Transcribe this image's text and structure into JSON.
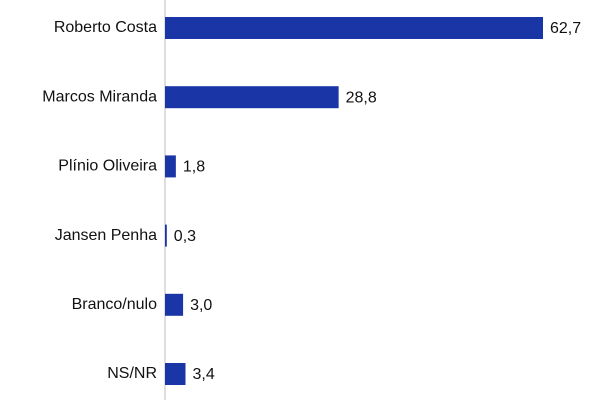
{
  "chart_data": {
    "type": "bar",
    "orientation": "horizontal",
    "categories": [
      "Roberto Costa",
      "Marcos Miranda",
      "Plínio Oliveira",
      "Jansen Penha",
      "Branco/nulo",
      "NS/NR"
    ],
    "values": [
      62.7,
      28.8,
      1.8,
      0.3,
      3.0,
      3.4
    ],
    "value_labels": [
      "62,7",
      "28,8",
      "1,8",
      "0,3",
      "3,0",
      "3,4"
    ],
    "color": "#1a35a6"
  }
}
